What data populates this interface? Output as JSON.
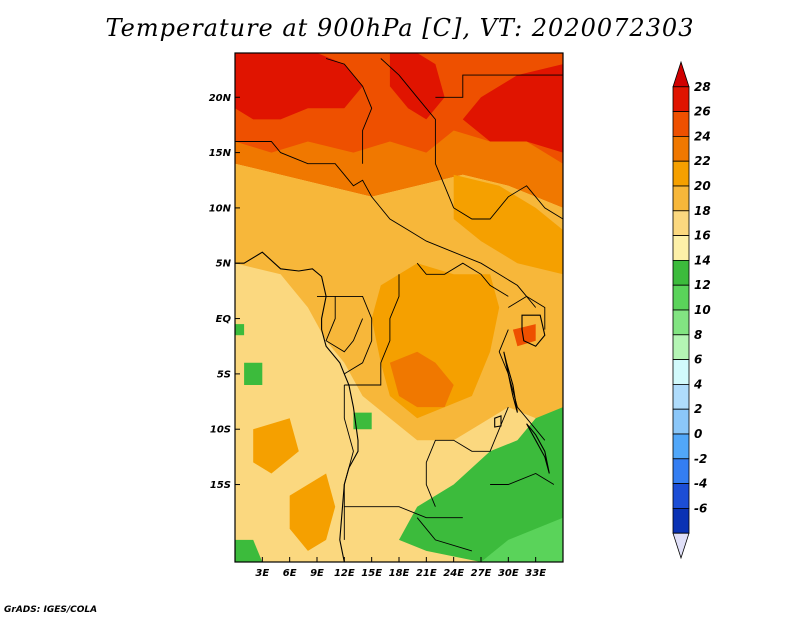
{
  "title": "Temperature at 900hPa [C], VT: 2020072303",
  "credit": "GrADS: IGES/COLA",
  "map": {
    "type": "filled-contour map",
    "variable": "Temperature",
    "level": "900hPa",
    "units": "C",
    "valid_time": "2020072303",
    "lon_range": [
      0,
      36
    ],
    "lat_range": [
      -22,
      24
    ],
    "x_ticks": [
      {
        "lon": 3,
        "label": "3E"
      },
      {
        "lon": 6,
        "label": "6E"
      },
      {
        "lon": 9,
        "label": "9E"
      },
      {
        "lon": 12,
        "label": "12E"
      },
      {
        "lon": 15,
        "label": "15E"
      },
      {
        "lon": 18,
        "label": "18E"
      },
      {
        "lon": 21,
        "label": "21E"
      },
      {
        "lon": 24,
        "label": "24E"
      },
      {
        "lon": 27,
        "label": "27E"
      },
      {
        "lon": 30,
        "label": "30E"
      },
      {
        "lon": 33,
        "label": "33E"
      }
    ],
    "y_ticks": [
      {
        "lat": 20,
        "label": "20N"
      },
      {
        "lat": 15,
        "label": "15N"
      },
      {
        "lat": 10,
        "label": "10N"
      },
      {
        "lat": 5,
        "label": "5N"
      },
      {
        "lat": 0,
        "label": "EQ"
      },
      {
        "lat": -5,
        "label": "5S"
      },
      {
        "lat": -10,
        "label": "10S"
      },
      {
        "lat": -15,
        "label": "15S"
      }
    ],
    "regions": [
      {
        "level": 24,
        "poly": [
          [
            0,
            24
          ],
          [
            36,
            24
          ],
          [
            36,
            10
          ],
          [
            30,
            12
          ],
          [
            25,
            13
          ],
          [
            20,
            12
          ],
          [
            15,
            11
          ],
          [
            10,
            12
          ],
          [
            5,
            13
          ],
          [
            0,
            14
          ]
        ]
      },
      {
        "level": 26,
        "poly": [
          [
            0,
            24
          ],
          [
            36,
            24
          ],
          [
            36,
            14
          ],
          [
            32,
            16
          ],
          [
            28,
            16
          ],
          [
            24,
            17
          ],
          [
            21,
            15
          ],
          [
            17,
            16
          ],
          [
            13,
            15
          ],
          [
            8,
            16
          ],
          [
            4,
            15
          ],
          [
            0,
            16
          ]
        ]
      },
      {
        "level": 28,
        "poly": [
          [
            0,
            24
          ],
          [
            9,
            24
          ],
          [
            12,
            23
          ],
          [
            14,
            21
          ],
          [
            12,
            19
          ],
          [
            8,
            19
          ],
          [
            5,
            18
          ],
          [
            2,
            18
          ],
          [
            0,
            19
          ]
        ]
      },
      {
        "level": 28,
        "poly": [
          [
            20,
            24
          ],
          [
            22,
            23
          ],
          [
            23,
            20
          ],
          [
            21,
            18
          ],
          [
            19,
            19
          ],
          [
            17,
            21
          ],
          [
            17,
            24
          ]
        ]
      },
      {
        "level": 28,
        "poly": [
          [
            36,
            23
          ],
          [
            31,
            22
          ],
          [
            27,
            20
          ],
          [
            25,
            18
          ],
          [
            28,
            16
          ],
          [
            32,
            16
          ],
          [
            36,
            15
          ]
        ]
      },
      {
        "level": 20,
        "poly": [
          [
            0,
            14
          ],
          [
            5,
            13
          ],
          [
            10,
            12
          ],
          [
            15,
            11
          ],
          [
            20,
            12
          ],
          [
            25,
            13
          ],
          [
            30,
            12
          ],
          [
            36,
            10
          ],
          [
            36,
            -10
          ],
          [
            30,
            -8
          ],
          [
            26,
            -10
          ],
          [
            24,
            -11
          ],
          [
            20,
            -11
          ],
          [
            17,
            -9
          ],
          [
            14,
            -7
          ],
          [
            12,
            -4
          ],
          [
            10,
            -2
          ],
          [
            8,
            1
          ],
          [
            5,
            4
          ],
          [
            0,
            5
          ]
        ]
      },
      {
        "level": 22,
        "poly": [
          [
            16,
            3
          ],
          [
            20,
            5
          ],
          [
            24,
            4
          ],
          [
            28,
            4
          ],
          [
            29,
            1
          ],
          [
            28,
            -3
          ],
          [
            26,
            -7
          ],
          [
            23,
            -8
          ],
          [
            20,
            -9
          ],
          [
            17,
            -7
          ],
          [
            16,
            -4
          ],
          [
            15,
            0
          ]
        ]
      },
      {
        "level": 24,
        "poly": [
          [
            17,
            -4
          ],
          [
            20,
            -3
          ],
          [
            22,
            -4
          ],
          [
            24,
            -6
          ],
          [
            23,
            -8
          ],
          [
            20,
            -8
          ],
          [
            18,
            -7
          ]
        ]
      },
      {
        "level": 22,
        "poly": [
          [
            6,
            -16
          ],
          [
            10,
            -14
          ],
          [
            11,
            -17
          ],
          [
            10,
            -20
          ],
          [
            8,
            -21
          ],
          [
            6,
            -19
          ]
        ]
      },
      {
        "level": 22,
        "poly": [
          [
            2,
            -10
          ],
          [
            6,
            -9
          ],
          [
            7,
            -12
          ],
          [
            4,
            -14
          ],
          [
            2,
            -13
          ]
        ]
      },
      {
        "level": 22,
        "poly": [
          [
            24,
            13
          ],
          [
            29,
            12
          ],
          [
            33,
            10
          ],
          [
            36,
            8
          ],
          [
            36,
            4
          ],
          [
            31,
            5
          ],
          [
            27,
            7
          ],
          [
            24,
            9
          ]
        ]
      },
      {
        "level": 14,
        "poly": [
          [
            36,
            -8
          ],
          [
            36,
            -22
          ],
          [
            27,
            -22
          ],
          [
            21,
            -21
          ],
          [
            18,
            -20
          ],
          [
            20,
            -17
          ],
          [
            24,
            -15
          ],
          [
            28,
            -12
          ],
          [
            31,
            -11
          ],
          [
            33,
            -9
          ]
        ]
      },
      {
        "level": 12,
        "poly": [
          [
            36,
            -18
          ],
          [
            36,
            -22
          ],
          [
            27,
            -22
          ],
          [
            30,
            -20
          ]
        ]
      },
      {
        "level": 14,
        "poly": [
          [
            0,
            -20
          ],
          [
            0,
            -22
          ],
          [
            3,
            -22
          ],
          [
            2,
            -20
          ]
        ]
      },
      {
        "level": 14,
        "poly": [
          [
            13,
            -8.5
          ],
          [
            15,
            -8.5
          ],
          [
            15,
            -10
          ],
          [
            13,
            -10
          ]
        ]
      },
      {
        "level": 14,
        "poly": [
          [
            1,
            -4
          ],
          [
            3,
            -4
          ],
          [
            3,
            -6
          ],
          [
            1,
            -6
          ]
        ]
      },
      {
        "level": 14,
        "poly": [
          [
            0,
            -0.5
          ],
          [
            1,
            -0.5
          ],
          [
            1,
            -1.5
          ],
          [
            0,
            -1.5
          ]
        ]
      },
      {
        "level": 26,
        "poly": [
          [
            30.5,
            -1
          ],
          [
            33,
            -0.5
          ],
          [
            33,
            -2
          ],
          [
            31,
            -2.5
          ]
        ]
      }
    ],
    "borders": [
      [
        [
          0,
          16
        ],
        [
          4,
          16
        ],
        [
          5,
          15
        ],
        [
          8,
          14
        ],
        [
          11,
          14
        ],
        [
          12,
          13
        ],
        [
          13,
          12
        ],
        [
          14,
          12.5
        ],
        [
          15,
          11
        ],
        [
          16,
          10
        ],
        [
          17,
          9
        ],
        [
          19,
          8
        ],
        [
          21,
          7
        ],
        [
          24,
          6
        ],
        [
          27,
          5
        ],
        [
          29,
          4
        ],
        [
          31,
          3
        ],
        [
          32,
          2
        ],
        [
          33,
          1
        ]
      ],
      [
        [
          16,
          23.5
        ],
        [
          18,
          22
        ],
        [
          20,
          20
        ],
        [
          22,
          18
        ],
        [
          22,
          14
        ],
        [
          23,
          12
        ],
        [
          24,
          10
        ]
      ],
      [
        [
          10,
          23.5
        ],
        [
          12,
          23
        ],
        [
          14,
          21
        ],
        [
          15,
          19
        ],
        [
          14,
          17
        ],
        [
          14,
          14
        ]
      ],
      [
        [
          22,
          20
        ],
        [
          25,
          20
        ],
        [
          25,
          22
        ],
        [
          36,
          22
        ]
      ],
      [
        [
          24,
          10
        ],
        [
          26,
          9
        ],
        [
          28,
          9
        ],
        [
          30,
          11
        ],
        [
          32,
          12
        ],
        [
          34,
          10
        ],
        [
          36,
          9
        ]
      ],
      [
        [
          20,
          5
        ],
        [
          21,
          4
        ],
        [
          23,
          4
        ],
        [
          25,
          5
        ],
        [
          27,
          4
        ],
        [
          28,
          3
        ],
        [
          30,
          2
        ]
      ],
      [
        [
          9,
          2
        ],
        [
          11,
          2
        ],
        [
          14,
          2
        ],
        [
          15,
          0
        ],
        [
          15,
          -2
        ],
        [
          14,
          -4
        ],
        [
          12,
          -5
        ]
      ],
      [
        [
          11,
          2
        ],
        [
          11,
          0
        ],
        [
          10,
          -2
        ],
        [
          12,
          -3
        ],
        [
          13,
          -2
        ],
        [
          14,
          0
        ]
      ],
      [
        [
          18,
          4
        ],
        [
          18,
          2
        ],
        [
          17,
          0
        ],
        [
          17,
          -2
        ],
        [
          16,
          -4
        ],
        [
          16,
          -6
        ],
        [
          12,
          -6
        ]
      ],
      [
        [
          12,
          -6
        ],
        [
          12,
          -9
        ],
        [
          13,
          -12
        ],
        [
          12,
          -15
        ],
        [
          12,
          -17
        ],
        [
          14,
          -17
        ],
        [
          18,
          -17
        ],
        [
          21,
          -18
        ],
        [
          25,
          -18
        ]
      ],
      [
        [
          21,
          -13
        ],
        [
          22,
          -11
        ],
        [
          24,
          -11
        ],
        [
          26,
          -12
        ],
        [
          28,
          -12
        ],
        [
          29,
          -10
        ],
        [
          30,
          -8
        ]
      ],
      [
        [
          21,
          -13
        ],
        [
          21,
          -15
        ],
        [
          22,
          -17
        ]
      ],
      [
        [
          30,
          -1
        ],
        [
          29,
          -3
        ],
        [
          30,
          -5
        ],
        [
          31,
          -8
        ],
        [
          32,
          -9
        ],
        [
          33,
          -10
        ],
        [
          34,
          -11
        ]
      ],
      [
        [
          30,
          1
        ],
        [
          32,
          2
        ],
        [
          34,
          1
        ],
        [
          34,
          -1
        ]
      ],
      [
        [
          12,
          -17
        ],
        [
          12,
          -20
        ]
      ],
      [
        [
          20,
          -18
        ],
        [
          22,
          -20
        ],
        [
          26,
          -21
        ]
      ],
      [
        [
          28,
          -15
        ],
        [
          30,
          -15
        ],
        [
          33,
          -14
        ],
        [
          35,
          -15
        ]
      ]
    ],
    "coastline": [
      [
        0,
        5
      ],
      [
        1,
        5
      ],
      [
        3,
        6
      ],
      [
        5,
        4.5
      ],
      [
        7,
        4.3
      ],
      [
        8.5,
        4.5
      ],
      [
        9.5,
        3.8
      ],
      [
        10,
        2
      ],
      [
        9.5,
        0
      ],
      [
        9.5,
        -1
      ],
      [
        10,
        -2.5
      ],
      [
        11.5,
        -4
      ],
      [
        12,
        -5
      ],
      [
        12.5,
        -6
      ],
      [
        13,
        -8
      ],
      [
        13.5,
        -11
      ],
      [
        13.5,
        -12
      ],
      [
        12.5,
        -13.5
      ],
      [
        12,
        -15
      ],
      [
        11.8,
        -17
      ],
      [
        11.5,
        -20
      ],
      [
        12,
        -22
      ]
    ],
    "lakes": [
      [
        [
          29.5,
          -3
        ],
        [
          30,
          -5
        ],
        [
          30.5,
          -7
        ],
        [
          31,
          -8.5
        ],
        [
          30.5,
          -6
        ],
        [
          29.8,
          -4
        ]
      ],
      [
        [
          32,
          -9.5
        ],
        [
          33,
          -10.5
        ],
        [
          34,
          -12
        ],
        [
          34.5,
          -14
        ],
        [
          34,
          -12.5
        ],
        [
          33,
          -11
        ]
      ],
      [
        [
          31.5,
          0.3
        ],
        [
          33.5,
          0.3
        ],
        [
          34,
          -1.5
        ],
        [
          33,
          -2.5
        ],
        [
          31.7,
          -2
        ],
        [
          31.5,
          -1
        ]
      ],
      [
        [
          28.5,
          -9
        ],
        [
          29.2,
          -8.8
        ],
        [
          29.2,
          -9.7
        ],
        [
          28.5,
          -9.8
        ]
      ]
    ]
  },
  "colorbar": {
    "labels": [
      "28",
      "26",
      "24",
      "22",
      "20",
      "18",
      "16",
      "14",
      "12",
      "10",
      "8",
      "6",
      "4",
      "2",
      "0",
      "-2",
      "-4",
      "-6"
    ],
    "colors": [
      "#d00000",
      "#e01400",
      "#ee5000",
      "#f07800",
      "#f5a000",
      "#f7b73a",
      "#fbd87f",
      "#fdf0a8",
      "#3cbb3c",
      "#5ad35a",
      "#82e482",
      "#b4f5b4",
      "#d2fafc",
      "#afdcfc",
      "#8bc7f9",
      "#51a7f9",
      "#347ef2",
      "#1c4ed6",
      "#0a32b4",
      "#08078a"
    ],
    "top_arrow_color": "#d00000",
    "bottom_arrow_color": "#e0e0f8"
  }
}
